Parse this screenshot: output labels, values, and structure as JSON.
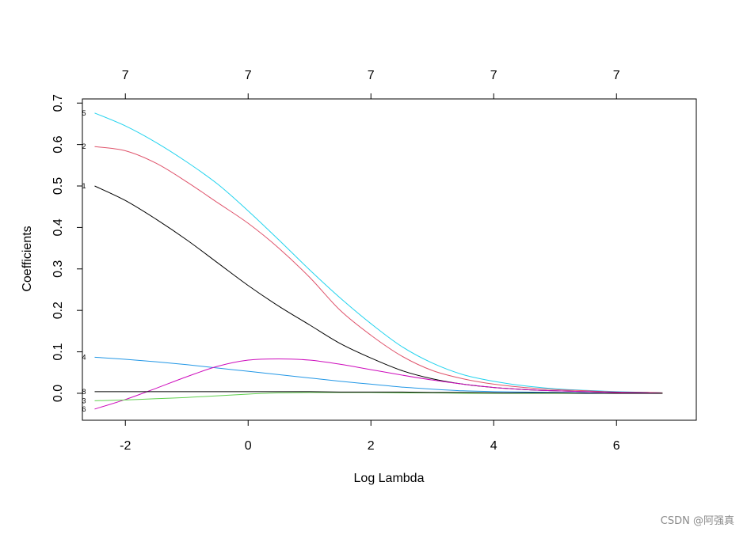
{
  "chart_data": {
    "type": "line",
    "xlabel": "Log Lambda",
    "ylabel": "Coefficients",
    "xlim": [
      -2.7,
      7.3
    ],
    "ylim": [
      -0.065,
      0.71
    ],
    "x_ticks": [
      "-2",
      "0",
      "2",
      "4",
      "6"
    ],
    "x_tick_values": [
      -2,
      0,
      2,
      4,
      6
    ],
    "y_ticks": [
      "0.0",
      "0.1",
      "0.2",
      "0.3",
      "0.4",
      "0.5",
      "0.6",
      "0.7"
    ],
    "y_tick_values": [
      0,
      0.1,
      0.2,
      0.3,
      0.4,
      0.5,
      0.6,
      0.7
    ],
    "top_axis_labels": [
      "7",
      "7",
      "7",
      "7",
      "7"
    ],
    "top_axis_positions": [
      -2,
      0,
      2,
      4,
      6
    ],
    "grid": false,
    "x": [
      -2.5,
      -2,
      -1.5,
      -1,
      -0.5,
      0,
      0.5,
      1,
      1.5,
      2,
      2.5,
      3,
      3.5,
      4,
      4.5,
      5,
      5.5,
      6,
      6.5,
      6.75
    ],
    "series": [
      {
        "name": "5",
        "color": "#22d3ee",
        "values": [
          0.676,
          0.645,
          0.605,
          0.558,
          0.505,
          0.44,
          0.37,
          0.298,
          0.23,
          0.168,
          0.113,
          0.073,
          0.045,
          0.029,
          0.018,
          0.011,
          0.007,
          0.004,
          0.002,
          0.001
        ]
      },
      {
        "name": "2",
        "color": "#df536b",
        "values": [
          0.595,
          0.585,
          0.555,
          0.51,
          0.46,
          0.41,
          0.35,
          0.28,
          0.2,
          0.14,
          0.09,
          0.055,
          0.035,
          0.022,
          0.014,
          0.009,
          0.006,
          0.003,
          0.002,
          0.001
        ]
      },
      {
        "name": "1",
        "color": "#000000",
        "values": [
          0.5,
          0.465,
          0.42,
          0.37,
          0.315,
          0.26,
          0.21,
          0.165,
          0.12,
          0.085,
          0.055,
          0.035,
          0.022,
          0.014,
          0.009,
          0.006,
          0.004,
          0.002,
          0.001,
          0.0
        ]
      },
      {
        "name": "4",
        "color": "#2297e6",
        "values": [
          0.087,
          0.082,
          0.076,
          0.069,
          0.061,
          0.053,
          0.045,
          0.037,
          0.029,
          0.022,
          0.015,
          0.01,
          0.006,
          0.004,
          0.003,
          0.002,
          0.001,
          0.0,
          0.0,
          0.0
        ]
      },
      {
        "name": "6",
        "color": "#cd0bbc",
        "values": [
          -0.038,
          -0.015,
          0.012,
          0.04,
          0.065,
          0.08,
          0.083,
          0.08,
          0.07,
          0.057,
          0.044,
          0.032,
          0.022,
          0.014,
          0.009,
          0.006,
          0.004,
          0.002,
          0.001,
          0.0
        ]
      },
      {
        "name": "3",
        "color": "#61d04f",
        "values": [
          -0.018,
          -0.016,
          -0.013,
          -0.01,
          -0.006,
          -0.002,
          0.001,
          0.002,
          0.002,
          0.002,
          0.001,
          0.001,
          0.0,
          0.0,
          0.0,
          0.0,
          0.0,
          0.0,
          0.0,
          0.0
        ]
      },
      {
        "name": "8",
        "color": "#000000",
        "values": [
          0.004,
          0.004,
          0.004,
          0.004,
          0.004,
          0.004,
          0.004,
          0.004,
          0.003,
          0.003,
          0.003,
          0.002,
          0.002,
          0.001,
          0.001,
          0.001,
          0.0,
          0.0,
          0.0,
          0.0
        ]
      }
    ]
  },
  "watermark": "CSDN @阿强真"
}
